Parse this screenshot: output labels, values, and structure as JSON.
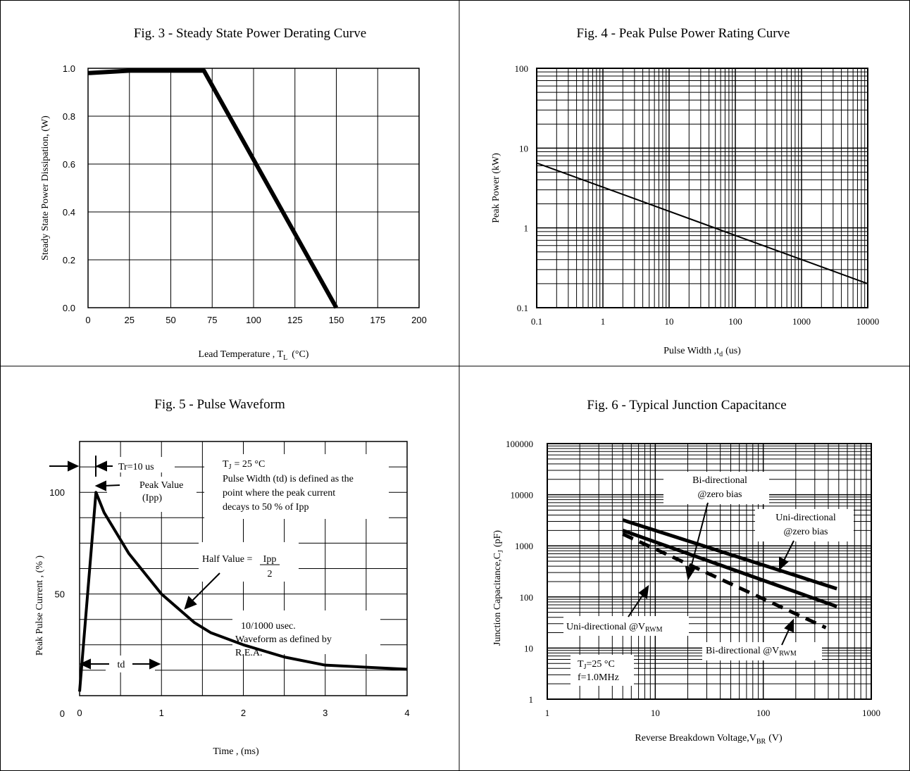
{
  "chart_data": [
    {
      "type": "line",
      "title": "Fig. 3 - Steady State Power Derating Curve",
      "ylabel": "Steady State Power Dissipation, (W)",
      "xlabel_main": "Lead Temperature , T",
      "xlabel_sub": "L",
      "xlabel_unit": "(°C)",
      "xlim": [
        0,
        200
      ],
      "ylim": [
        0,
        1.0
      ],
      "xticks": [
        "0",
        "25",
        "50",
        "75",
        "100",
        "125",
        "150",
        "175",
        "200"
      ],
      "yticks": [
        "0.0",
        "0.2",
        "0.4",
        "0.6",
        "0.8",
        "1.0"
      ],
      "grid": true,
      "series": [
        {
          "x": [
            0,
            25,
            70,
            150
          ],
          "y": [
            0.98,
            0.99,
            0.99,
            0.0
          ]
        }
      ]
    },
    {
      "type": "line",
      "title": "Fig. 4 - Peak Pulse Power Rating Curve",
      "ylabel": "Peak Power  (kW)",
      "xlabel_main": "Pulse Width ,t",
      "xlabel_sub": "d",
      "xlabel_unit": "(us)",
      "xscale": "log",
      "yscale": "log",
      "xlim": [
        0.1,
        10000
      ],
      "ylim": [
        0.1,
        100
      ],
      "xticks": [
        "0.1",
        "1",
        "10",
        "100",
        "1000",
        "10000"
      ],
      "yticks": [
        "0.1",
        "1",
        "10",
        "100"
      ],
      "grid": true,
      "series": [
        {
          "x": [
            0.1,
            10000
          ],
          "y": [
            6.5,
            0.2
          ]
        }
      ]
    },
    {
      "type": "line",
      "title": "Fig. 5 - Pulse Waveform",
      "ylabel": "Peak Pulse Current , (% )",
      "xlabel": "Time , (ms)",
      "xlim": [
        0,
        4
      ],
      "ylim": [
        0,
        125
      ],
      "xticks": [
        "0",
        "1",
        "2",
        "3",
        "4"
      ],
      "yticks": [
        "0",
        "50",
        "100"
      ],
      "grid": true,
      "series": [
        {
          "x": [
            0,
            0.2,
            0.3,
            0.45,
            0.6,
            0.8,
            1.0,
            1.2,
            1.4,
            1.6,
            1.8,
            2.0,
            2.5,
            3.0,
            3.5,
            4.0
          ],
          "y": [
            2,
            100,
            90,
            80,
            70,
            60,
            50,
            43,
            36,
            31,
            28,
            25,
            19,
            15,
            14,
            13
          ]
        }
      ],
      "annotations": {
        "tr": "Tr=10 us",
        "peak_1": "Peak Value",
        "peak_2": "(Ipp)",
        "tj_main": "T",
        "tj_sub": "J",
        "tj_val": "= 25 °C",
        "pw_1": "Pulse Width (td) is defined as the",
        "pw_2": "point where the peak current",
        "pw_3": "decays to 50 % of Ipp",
        "half_label": "Half Value =",
        "half_num": "Ipp",
        "half_den": "2",
        "wave_1": "10/1000 usec.",
        "wave_2": "Waveform as defined by",
        "wave_3": "R.E.A.",
        "td": "td"
      }
    },
    {
      "type": "line",
      "title": "Fig. 6 - Typical Junction Capacitance",
      "ylabel_main": "Junction  Capacitance,C",
      "ylabel_sub": "J",
      "ylabel_unit": "(pF)",
      "xlabel_main": "Reverse   Breakdown  Voltage,V",
      "xlabel_sub": "BR",
      "xlabel_unit": "(V)",
      "xscale": "log",
      "yscale": "log",
      "xlim": [
        1,
        1000
      ],
      "ylim": [
        1,
        100000
      ],
      "xticks": [
        "1",
        "10",
        "100",
        "1000"
      ],
      "yticks": [
        "1",
        "10",
        "100",
        "1000",
        "10000",
        "100000"
      ],
      "grid": true,
      "series": [
        {
          "x": [
            5,
            480
          ],
          "y": [
            3200,
            145
          ],
          "style": "solid"
        },
        {
          "x": [
            5,
            480
          ],
          "y": [
            2000,
            65
          ],
          "style": "solid"
        },
        {
          "x": [
            5,
            380
          ],
          "y": [
            1700,
            25
          ],
          "style": "dashed"
        }
      ],
      "annotations": {
        "bi_zero_1": "Bi-directional",
        "bi_zero_2": "@zero bias",
        "uni_zero_1": "Uni-directional",
        "uni_zero_2": "@zero  bias",
        "uni_v_main": "Uni-directional @V",
        "uni_v_sub": "RWM",
        "bi_v_main": "Bi-directional @V",
        "bi_v_sub": "RWM",
        "tj_main": "T",
        "tj_sub": "J",
        "tj_val": "=25  °C",
        "freq": "f=1.0MHz"
      }
    }
  ]
}
